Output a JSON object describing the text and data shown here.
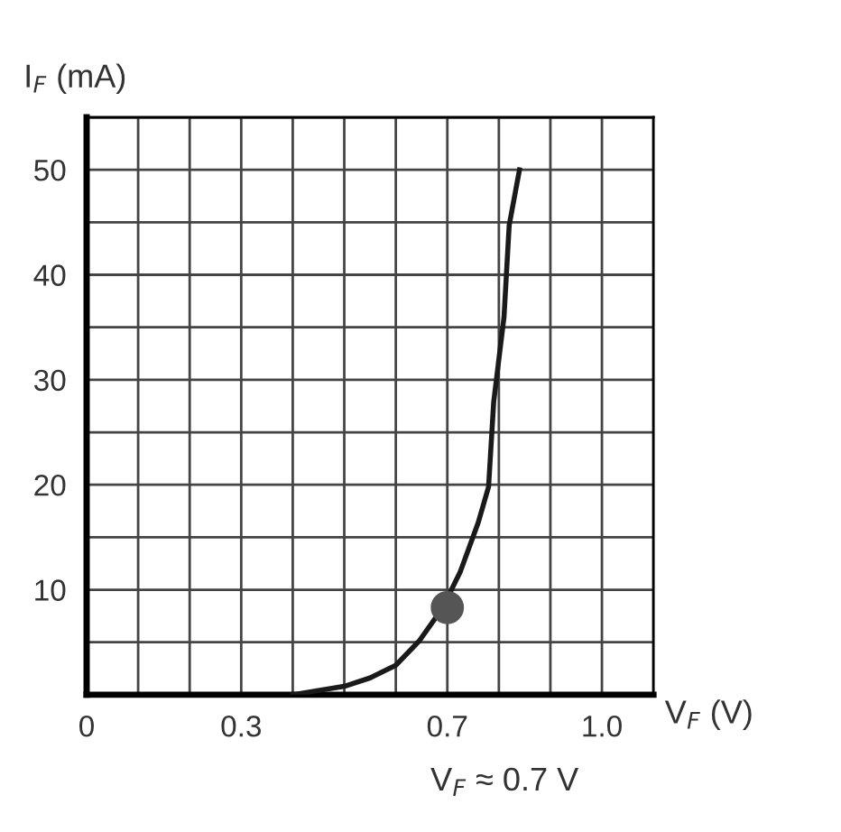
{
  "chart_data": {
    "type": "line",
    "xlabel": "V$_{F}$ (V)",
    "ylabel": "I$_{F}$ (mA)",
    "annotations": [
      "V$_{F}$ ≈ 0.7 V"
    ],
    "series": [
      {
        "color": "#1a1a1a",
        "x": [
          0.4,
          0.5,
          0.55,
          0.6,
          0.645,
          0.69,
          0.725,
          0.76,
          0.78,
          0.79,
          0.81,
          0.82,
          0.84
        ],
        "values": [
          0,
          0.8,
          1.6,
          2.8,
          5.1,
          8.2,
          11.7,
          16.4,
          19.8,
          27.9,
          36,
          44.7,
          50
        ]
      },
      {
        "type": "scatter",
        "color": "#555555",
        "x": [
          0.7
        ],
        "values": [
          8.3
        ]
      }
    ],
    "xlim": [
      0,
      1.1
    ],
    "ylim": [
      0,
      55
    ],
    "xticks": [
      0,
      {
        "value": 0.1,
        "label": null
      },
      {
        "value": 0.2,
        "label": null
      },
      0.3,
      {
        "value": 0.4,
        "label": null
      },
      {
        "value": 0.5,
        "label": null
      },
      {
        "value": 0.6,
        "label": null
      },
      0.7,
      {
        "value": 0.8,
        "label": null
      },
      {
        "value": 0.9,
        "label": null
      },
      {
        "value": 1.0,
        "label": "1.0"
      },
      {
        "value": 1.1,
        "label": null
      }
    ],
    "yticks": [
      {
        "value": 0,
        "label": null
      },
      {
        "value": 5,
        "label": null
      },
      10,
      {
        "value": 15,
        "label": null
      },
      20,
      {
        "value": 25,
        "label": null
      },
      30,
      {
        "value": 35,
        "label": null
      },
      40,
      {
        "value": 45,
        "label": null
      },
      50,
      {
        "value": 55,
        "label": null
      }
    ],
    "grid": true
  }
}
